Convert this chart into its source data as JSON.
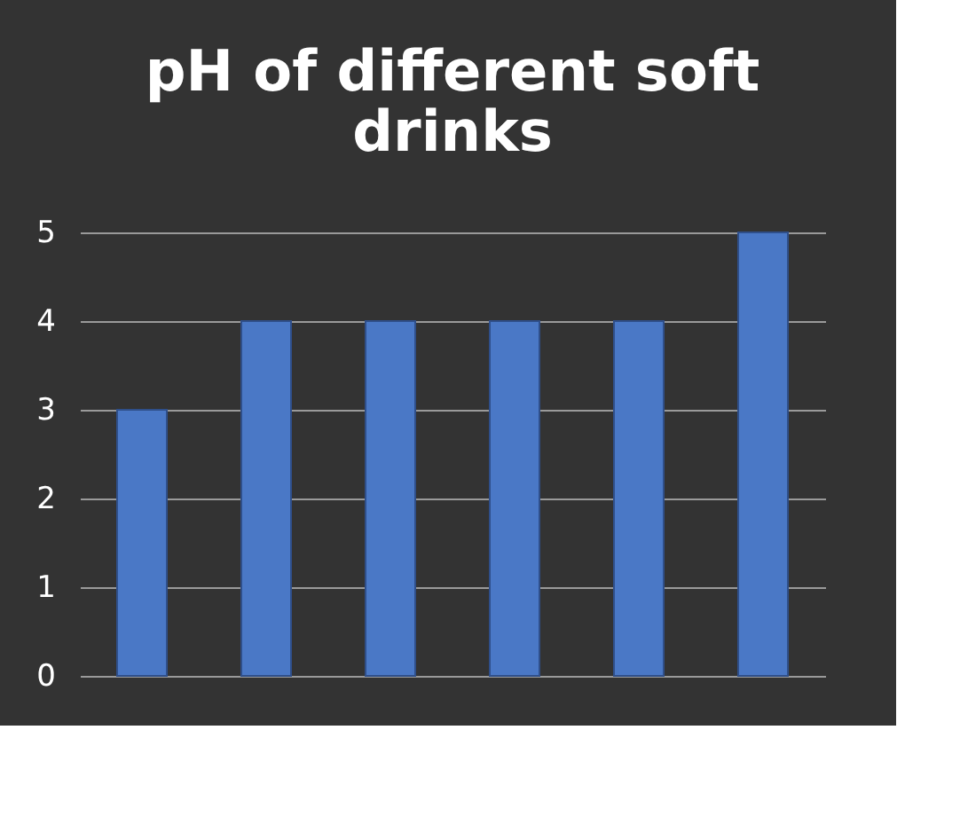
{
  "chart_data": {
    "type": "bar",
    "title": "pH of different soft drinks",
    "categories": [
      null,
      null,
      null,
      null,
      null,
      null
    ],
    "values": [
      3,
      4,
      4,
      4,
      4,
      5
    ],
    "color": "#4a78c6",
    "ylim": [
      0,
      5
    ],
    "yticks": [
      0,
      1,
      2,
      3,
      4,
      5
    ],
    "grid": "y",
    "tick_labels": "y"
  }
}
